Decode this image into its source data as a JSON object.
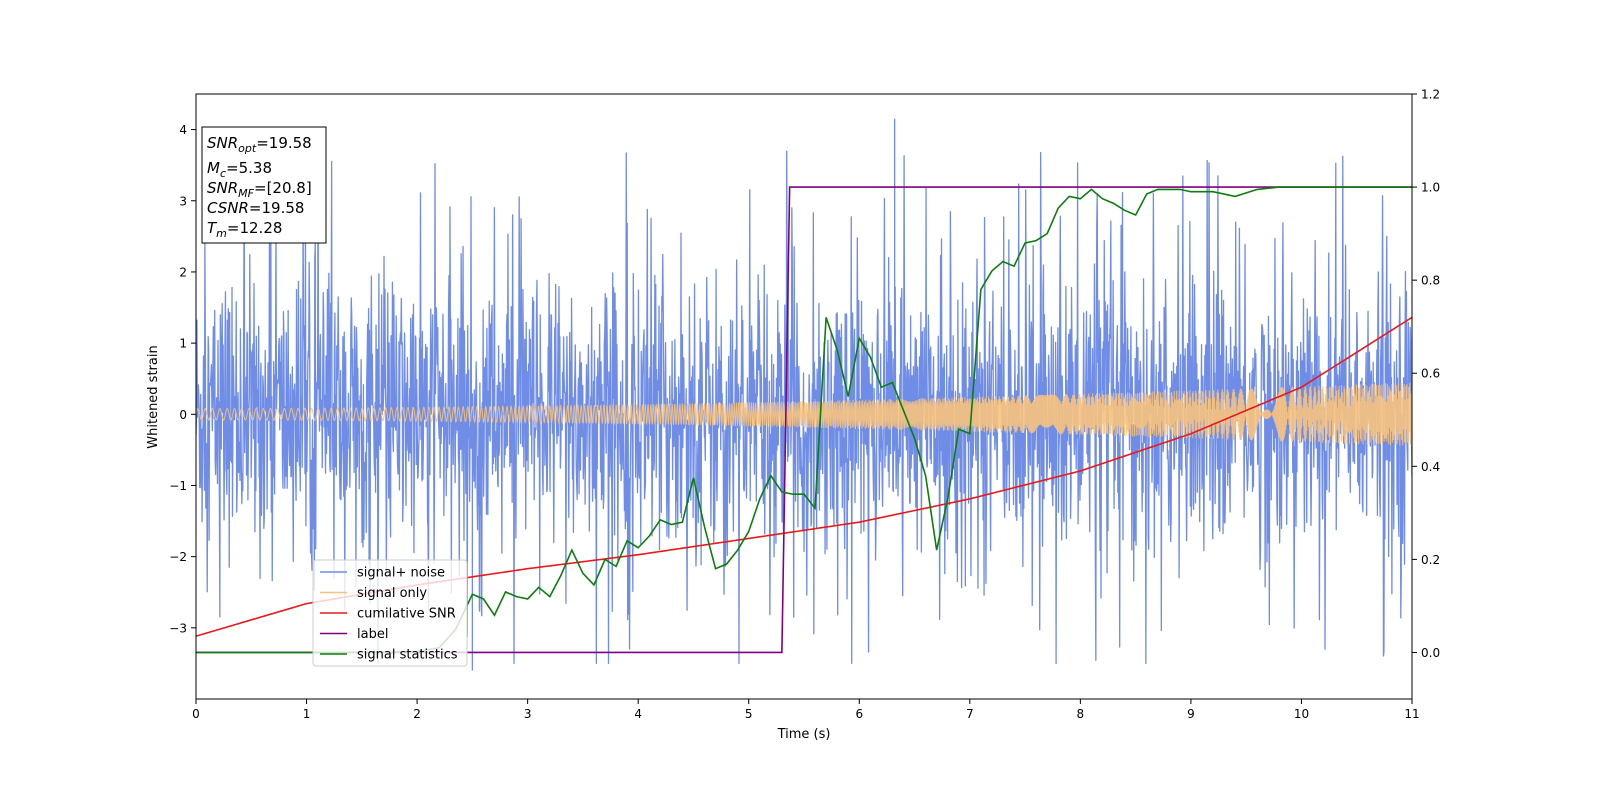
{
  "chart_data": {
    "type": "line",
    "xlabel": "Time (s)",
    "ylabel": "Whitened strain",
    "xlim": [
      0,
      11
    ],
    "ylim_left": [
      -4,
      4.5
    ],
    "ylim_right": [
      -0.1,
      1.2
    ],
    "x_ticks": [
      "0",
      "1",
      "2",
      "3",
      "4",
      "5",
      "6",
      "7",
      "8",
      "9",
      "10",
      "11"
    ],
    "y_ticks_left": [
      "−3",
      "−2",
      "−1",
      "0",
      "1",
      "2",
      "3",
      "4"
    ],
    "y_ticks_right": [
      "0.0",
      "0.2",
      "0.4",
      "0.6",
      "0.8",
      "1.0",
      "1.2"
    ],
    "grid": false,
    "legend_position": "lower-left",
    "annotation": {
      "lines": [
        {
          "name": "SNR",
          "sub": "opt",
          "value": "=19.58"
        },
        {
          "name": "M",
          "sub": "c",
          "value": "=5.38"
        },
        {
          "name": "SNR",
          "sub": "MF",
          "value": "=[20.8]"
        },
        {
          "name": "CSNR",
          "sub": "",
          "value": "=19.58"
        },
        {
          "name": "T",
          "sub": "m",
          "value": "=12.28"
        }
      ]
    },
    "series": [
      {
        "name": "signal+ noise",
        "axis": "left",
        "color": "#6f8de6",
        "description_values": {
          "noise_sigma": 0.95,
          "typical_range": [
            -2.3,
            2.3
          ],
          "max_spike": 4.15,
          "max_spike_x": 6.32,
          "min_spike": -3.6,
          "min_spike_x": 2.5
        }
      },
      {
        "name": "signal only",
        "axis": "left",
        "color": "#f7c27e",
        "amplitude_start": 0.08,
        "amplitude_end": 0.45
      },
      {
        "name": "cumilative SNR",
        "axis": "right",
        "color": "#e8191a",
        "x": [
          0,
          1,
          2,
          3,
          4,
          5,
          6,
          7,
          8,
          9,
          10,
          11
        ],
        "y": [
          0.035,
          0.105,
          0.145,
          0.18,
          0.21,
          0.245,
          0.28,
          0.33,
          0.39,
          0.47,
          0.57,
          0.72
        ]
      },
      {
        "name": "label",
        "axis": "right",
        "color": "#800080",
        "x": [
          0,
          5.3,
          5.37,
          11
        ],
        "y": [
          0,
          0,
          1,
          1
        ]
      },
      {
        "name": "signal statistics",
        "axis": "right",
        "color": "#0d7d0d",
        "x": [
          0,
          0.5,
          1,
          1.5,
          2,
          2.2,
          2.35,
          2.5,
          2.6,
          2.7,
          2.8,
          2.9,
          3.0,
          3.1,
          3.2,
          3.3,
          3.4,
          3.5,
          3.6,
          3.7,
          3.8,
          3.9,
          4.0,
          4.1,
          4.2,
          4.3,
          4.4,
          4.5,
          4.6,
          4.7,
          4.8,
          4.9,
          5.0,
          5.1,
          5.2,
          5.3,
          5.4,
          5.5,
          5.6,
          5.7,
          5.8,
          5.9,
          6.0,
          6.1,
          6.2,
          6.3,
          6.4,
          6.5,
          6.6,
          6.7,
          6.8,
          6.9,
          7.0,
          7.1,
          7.2,
          7.3,
          7.4,
          7.5,
          7.6,
          7.7,
          7.8,
          7.9,
          8.0,
          8.1,
          8.2,
          8.3,
          8.4,
          8.5,
          8.6,
          8.7,
          8.8,
          8.9,
          9.0,
          9.2,
          9.4,
          9.6,
          9.8,
          10.0,
          10.5,
          11.0
        ],
        "y": [
          0.0,
          0.0,
          0.0,
          0.0,
          0.002,
          0.01,
          0.05,
          0.125,
          0.115,
          0.08,
          0.13,
          0.12,
          0.115,
          0.14,
          0.12,
          0.165,
          0.22,
          0.17,
          0.145,
          0.2,
          0.185,
          0.24,
          0.225,
          0.25,
          0.285,
          0.275,
          0.28,
          0.375,
          0.27,
          0.18,
          0.19,
          0.22,
          0.26,
          0.33,
          0.38,
          0.345,
          0.34,
          0.34,
          0.31,
          0.72,
          0.65,
          0.55,
          0.675,
          0.635,
          0.57,
          0.58,
          0.52,
          0.46,
          0.38,
          0.22,
          0.33,
          0.48,
          0.47,
          0.78,
          0.82,
          0.84,
          0.83,
          0.88,
          0.885,
          0.9,
          0.955,
          0.98,
          0.975,
          0.995,
          0.975,
          0.965,
          0.95,
          0.94,
          0.985,
          0.995,
          0.995,
          0.995,
          0.99,
          0.99,
          0.98,
          0.995,
          1.0,
          1.0,
          1.0,
          1.0
        ]
      }
    ]
  }
}
